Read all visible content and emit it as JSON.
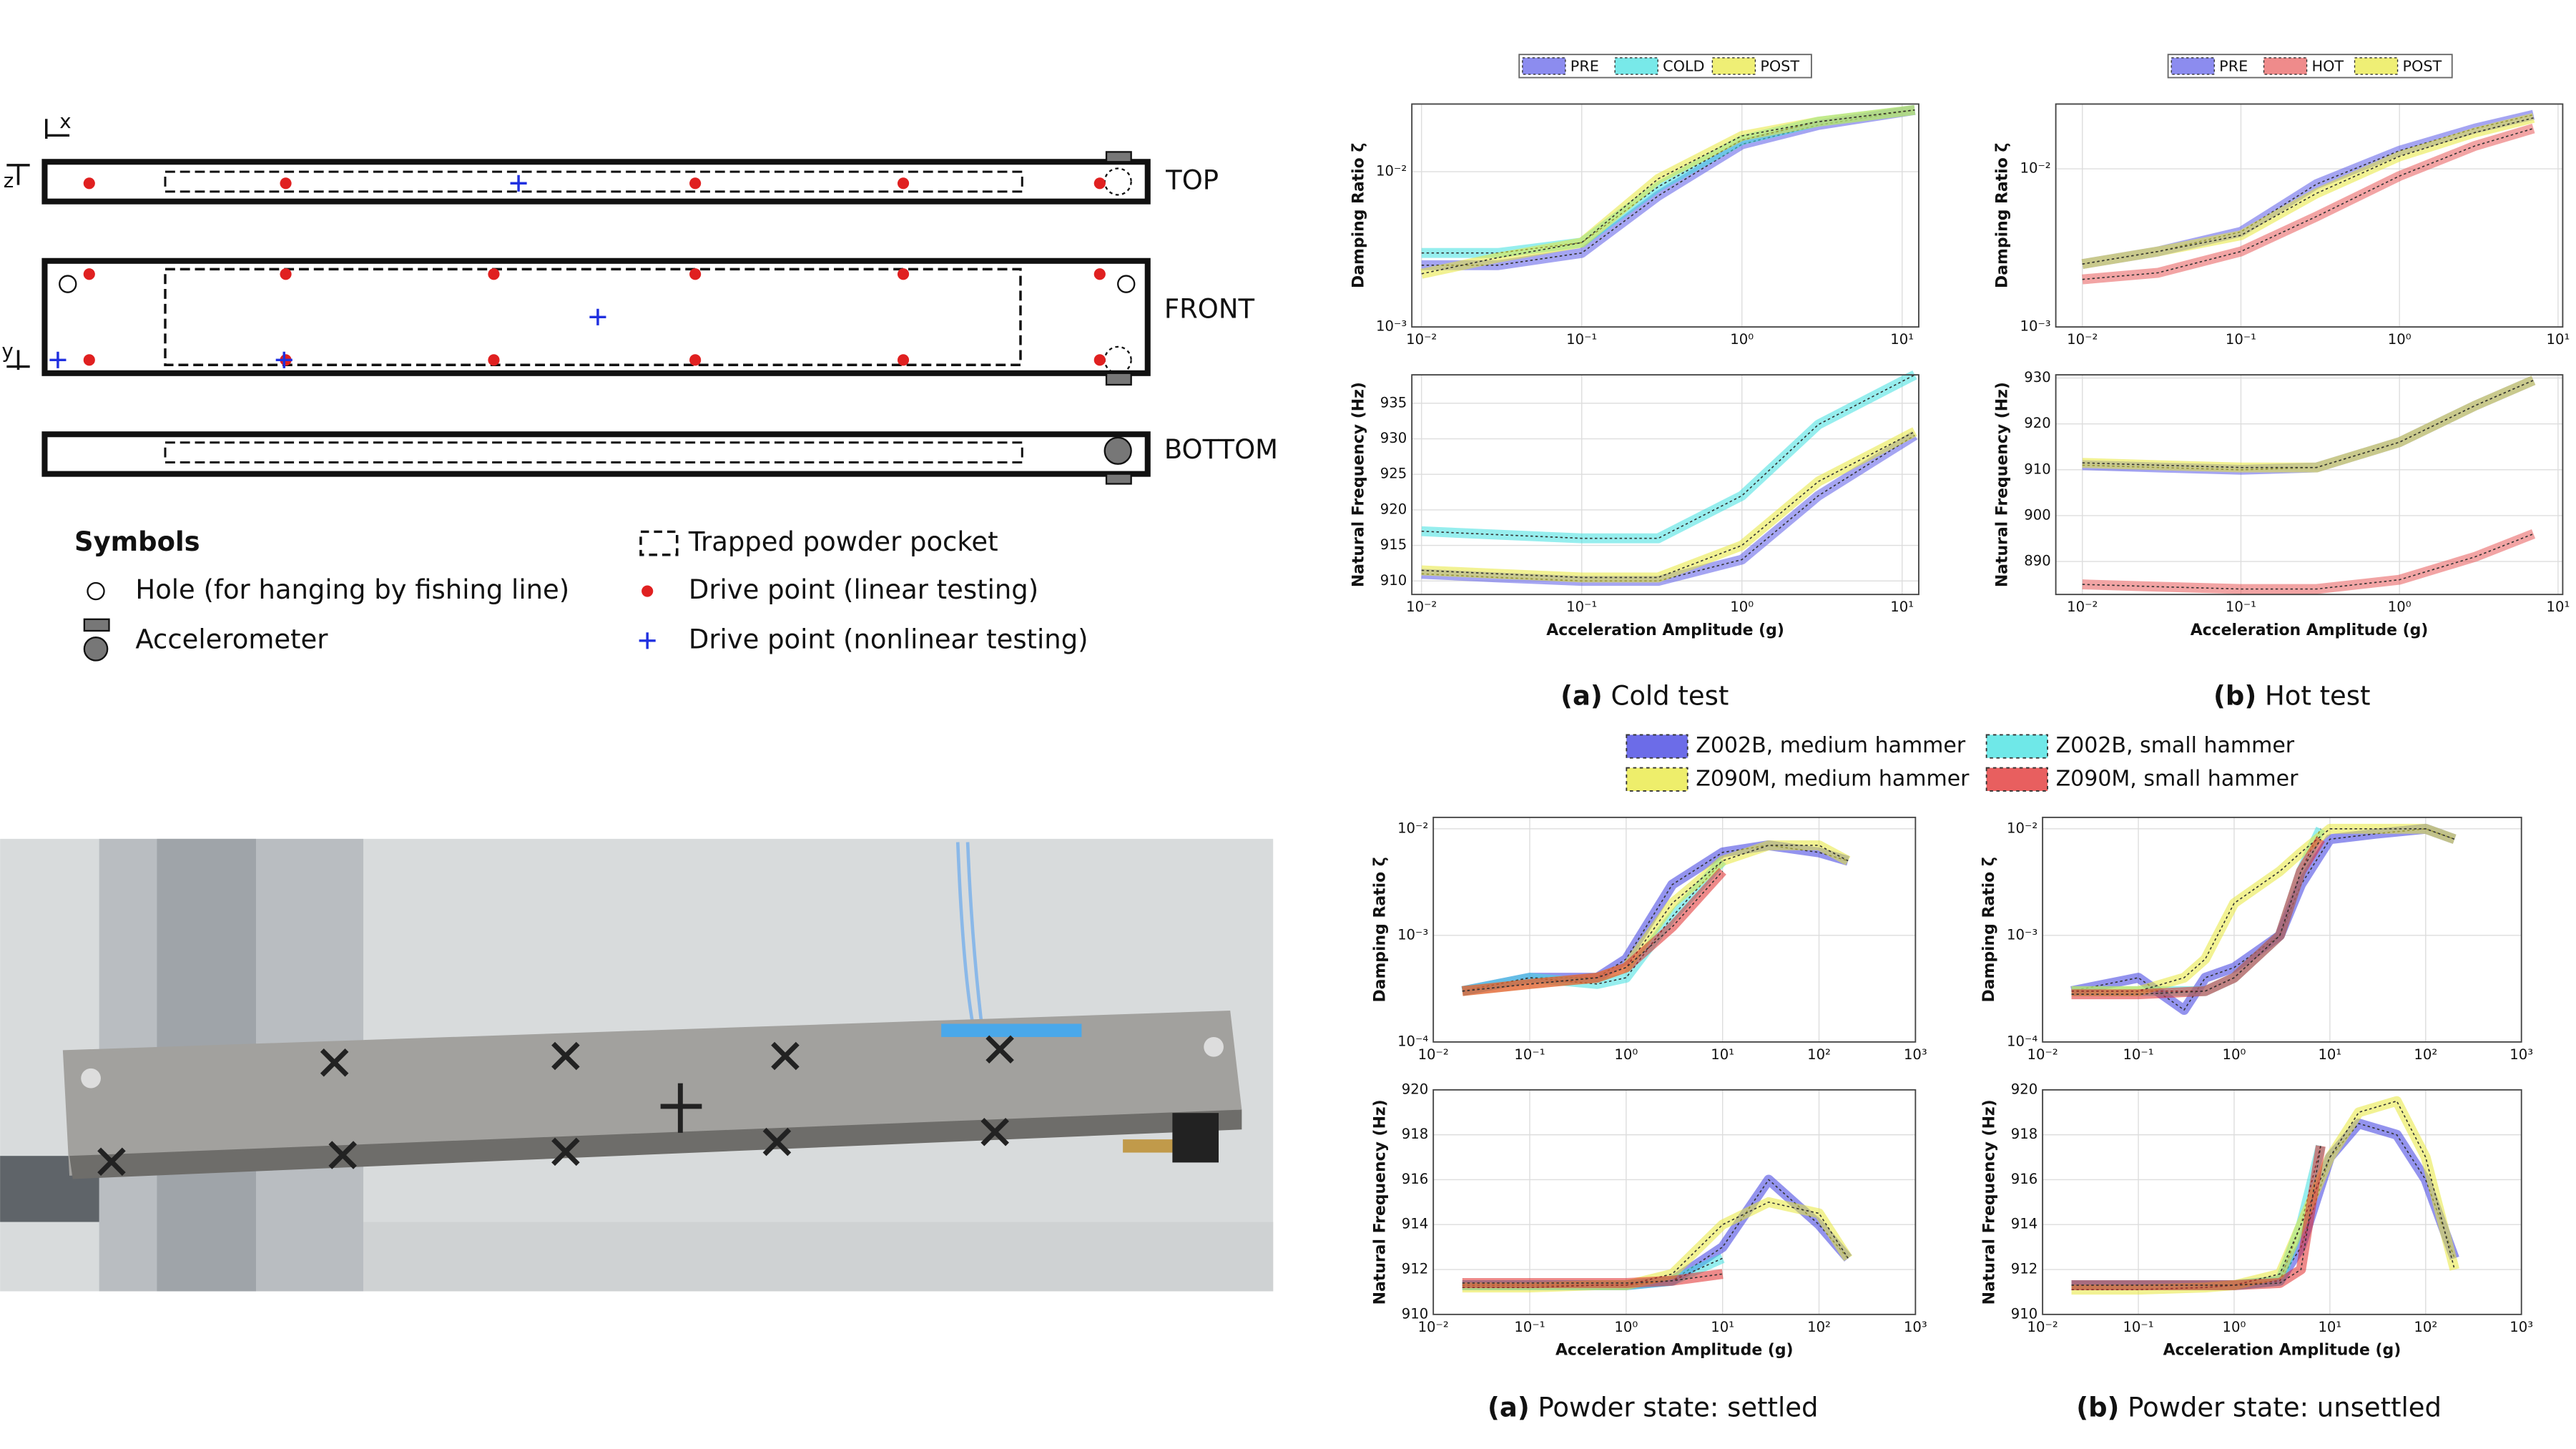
{
  "diagram": {
    "axes": [
      "x",
      "z",
      "y"
    ],
    "views": [
      "TOP",
      "FRONT",
      "BOTTOM"
    ],
    "legend_title": "Symbols",
    "legend": [
      "Hole (for hanging by fishing line)",
      "Accelerometer",
      "Trapped powder pocket",
      "Drive point (linear testing)",
      "Drive point (nonlinear testing)"
    ]
  },
  "captions": [
    {
      "label": "(a)",
      "text": "Cold test"
    },
    {
      "label": "(b)",
      "text": "Hot test"
    },
    {
      "label": "(a)",
      "text": "Powder state: settled"
    },
    {
      "label": "(b)",
      "text": "Powder state: unsettled"
    }
  ],
  "charts": [
    {
      "type": "line",
      "ylabel": "Damping Ratio ζ",
      "xscale": "log",
      "yscale": "log",
      "grid": true,
      "xlim": [
        0.0087,
        12.7
      ],
      "ylim": [
        0.001,
        0.0273
      ],
      "xticks": [
        {
          "value": 0.01,
          "label": "10⁻²"
        },
        {
          "value": 0.1,
          "label": "10⁻¹"
        },
        {
          "value": 1,
          "label": "10⁰"
        },
        {
          "value": 10,
          "label": "10¹"
        }
      ],
      "yticks": [
        {
          "value": 0.001,
          "label": "10⁻³"
        },
        {
          "value": 0.01,
          "label": "10⁻²"
        }
      ],
      "series": [
        {
          "name": "PRE",
          "color": "#5b5be8",
          "x": [
            0.01,
            0.03,
            0.1,
            0.3,
            1,
            3,
            12
          ],
          "values": [
            0.0025,
            0.0025,
            0.003,
            0.007,
            0.015,
            0.02,
            0.025
          ]
        },
        {
          "name": "COLD",
          "color": "#3fe0e0",
          "x": [
            0.01,
            0.03,
            0.1,
            0.3,
            1,
            3,
            12
          ],
          "values": [
            0.003,
            0.003,
            0.0035,
            0.008,
            0.016,
            0.021,
            0.025
          ]
        },
        {
          "name": "POST",
          "color": "#e8e83a",
          "x": [
            0.01,
            0.03,
            0.1,
            0.3,
            1,
            3,
            12
          ],
          "values": [
            0.0022,
            0.0028,
            0.0035,
            0.009,
            0.017,
            0.021,
            0.025
          ]
        }
      ]
    },
    {
      "type": "line",
      "ylabel": "Natural Frequency (Hz)",
      "xlabel": "Acceleration Amplitude (g)",
      "xscale": "log",
      "grid": true,
      "xlim": [
        0.0087,
        12.7
      ],
      "ylim": [
        908.1,
        939
      ],
      "xticks": [
        {
          "value": 0.01,
          "label": "10⁻²"
        },
        {
          "value": 0.1,
          "label": "10⁻¹"
        },
        {
          "value": 1,
          "label": "10⁰"
        },
        {
          "value": 10,
          "label": "10¹"
        }
      ],
      "yticks": [
        910,
        915,
        920,
        925,
        930,
        935
      ],
      "series": [
        {
          "color": "#5b5be8",
          "x": [
            0.01,
            0.03,
            0.1,
            0.3,
            1,
            3,
            12
          ],
          "values": [
            911,
            910.5,
            910,
            910,
            913,
            922,
            930.5
          ]
        },
        {
          "color": "#3fe0e0",
          "x": [
            0.01,
            0.03,
            0.1,
            0.3,
            1,
            3,
            12
          ],
          "values": [
            917,
            916.5,
            916,
            916,
            922,
            932,
            939
          ]
        },
        {
          "color": "#e8e83a",
          "x": [
            0.01,
            0.03,
            0.1,
            0.3,
            1,
            3,
            12
          ],
          "values": [
            911.5,
            911,
            910.5,
            910.5,
            915,
            924,
            931
          ]
        }
      ]
    },
    {
      "type": "line",
      "ylabel": "Damping Ratio ζ",
      "xscale": "log",
      "yscale": "log",
      "grid": true,
      "xlim": [
        0.0068,
        10.7
      ],
      "ylim": [
        0.001,
        0.0257
      ],
      "xticks": [
        {
          "value": 0.01,
          "label": "10⁻²"
        },
        {
          "value": 0.1,
          "label": "10⁻¹"
        },
        {
          "value": 1,
          "label": "10⁰"
        },
        {
          "value": 10,
          "label": "10¹"
        }
      ],
      "yticks": [
        {
          "value": 0.001,
          "label": "10⁻³"
        },
        {
          "value": 0.01,
          "label": "10⁻²"
        }
      ],
      "series": [
        {
          "name": "PRE",
          "color": "#5b5be8",
          "x": [
            0.01,
            0.03,
            0.1,
            0.3,
            1,
            3,
            7
          ],
          "values": [
            0.0025,
            0.003,
            0.004,
            0.008,
            0.013,
            0.018,
            0.022
          ]
        },
        {
          "name": "HOT",
          "color": "#e85a5a",
          "x": [
            0.01,
            0.03,
            0.1,
            0.3,
            1,
            3,
            7
          ],
          "values": [
            0.002,
            0.0022,
            0.003,
            0.005,
            0.009,
            0.014,
            0.018
          ]
        },
        {
          "name": "POST",
          "color": "#e8e83a",
          "x": [
            0.01,
            0.03,
            0.1,
            0.3,
            1,
            3,
            7
          ],
          "values": [
            0.0025,
            0.003,
            0.0038,
            0.007,
            0.012,
            0.017,
            0.021
          ]
        }
      ]
    },
    {
      "type": "line",
      "ylabel": "Natural Frequency (Hz)",
      "xlabel": "Acceleration Amplitude (g)",
      "xscale": "log",
      "grid": true,
      "xlim": [
        0.0068,
        10.7
      ],
      "ylim": [
        882.8,
        930.7
      ],
      "xticks": [
        {
          "value": 0.01,
          "label": "10⁻²"
        },
        {
          "value": 0.1,
          "label": "10⁻¹"
        },
        {
          "value": 1,
          "label": "10⁰"
        },
        {
          "value": 10,
          "label": "10¹"
        }
      ],
      "yticks": [
        890,
        900,
        910,
        920,
        930
      ],
      "series": [
        {
          "color": "#5b5be8",
          "x": [
            0.01,
            0.03,
            0.1,
            0.3,
            1,
            3,
            7
          ],
          "values": [
            911,
            910.5,
            910,
            910.5,
            916,
            924,
            929.5
          ]
        },
        {
          "color": "#e85a5a",
          "x": [
            0.01,
            0.03,
            0.1,
            0.3,
            1,
            3,
            7
          ],
          "values": [
            885,
            884.5,
            884,
            884,
            886,
            891,
            896
          ]
        },
        {
          "color": "#e8e83a",
          "x": [
            0.01,
            0.03,
            0.1,
            0.3,
            1,
            3,
            7
          ],
          "values": [
            911.5,
            911,
            910.5,
            910.5,
            916,
            924,
            929.5
          ]
        }
      ]
    },
    {
      "type": "line",
      "ylabel": "Damping Ratio ζ",
      "xscale": "log",
      "yscale": "log",
      "grid": true,
      "xlim": [
        0.01,
        1000
      ],
      "ylim": [
        0.0001,
        0.0128
      ],
      "xticks": [
        {
          "value": 0.01,
          "label": "10⁻²"
        },
        {
          "value": 0.1,
          "label": "10⁻¹"
        },
        {
          "value": 1,
          "label": "10⁰"
        },
        {
          "value": 10,
          "label": "10¹"
        },
        {
          "value": 100,
          "label": "10²"
        },
        {
          "value": 1000,
          "label": "10³"
        }
      ],
      "yticks": [
        {
          "value": 0.0001,
          "label": "10⁻⁴"
        },
        {
          "value": 0.001,
          "label": "10⁻³"
        },
        {
          "value": 0.01,
          "label": "10⁻²"
        }
      ],
      "series": [
        {
          "name": "Z002B, medium hammer",
          "color": "#3b3be0",
          "x": [
            0.02,
            0.1,
            0.5,
            1,
            3,
            10,
            30,
            100,
            200
          ],
          "values": [
            0.0003,
            0.0004,
            0.0004,
            0.0006,
            0.003,
            0.006,
            0.007,
            0.006,
            0.005
          ]
        },
        {
          "name": "Z002B, small hammer",
          "color": "#3fe0e0",
          "x": [
            0.02,
            0.1,
            0.5,
            1,
            3,
            10
          ],
          "values": [
            0.0003,
            0.0004,
            0.00035,
            0.0004,
            0.0015,
            0.005
          ]
        },
        {
          "name": "Z090M, medium hammer",
          "color": "#e8e83a",
          "x": [
            0.02,
            0.1,
            0.5,
            1,
            3,
            10,
            30,
            100,
            200
          ],
          "values": [
            0.0003,
            0.00035,
            0.0004,
            0.0005,
            0.002,
            0.005,
            0.007,
            0.007,
            0.005
          ]
        },
        {
          "name": "Z090M, small hammer",
          "color": "#e02a2a",
          "x": [
            0.02,
            0.1,
            0.5,
            1,
            3,
            10
          ],
          "values": [
            0.0003,
            0.00035,
            0.0004,
            0.0005,
            0.0012,
            0.004
          ]
        }
      ]
    },
    {
      "type": "line",
      "ylabel": "Natural Frequency (Hz)",
      "xlabel": "Acceleration Amplitude (g)",
      "xscale": "log",
      "grid": true,
      "xlim": [
        0.01,
        1000
      ],
      "ylim": [
        910,
        920
      ],
      "xticks": [
        {
          "value": 0.01,
          "label": "10⁻²"
        },
        {
          "value": 0.1,
          "label": "10⁻¹"
        },
        {
          "value": 1,
          "label": "10⁰"
        },
        {
          "value": 10,
          "label": "10¹"
        },
        {
          "value": 100,
          "label": "10²"
        },
        {
          "value": 1000,
          "label": "10³"
        }
      ],
      "yticks": [
        910,
        912,
        914,
        916,
        918,
        920
      ],
      "series": [
        {
          "color": "#3b3be0",
          "x": [
            0.02,
            0.1,
            0.5,
            1,
            3,
            10,
            30,
            100,
            200
          ],
          "values": [
            911.3,
            911.3,
            911.3,
            911.3,
            911.5,
            913,
            916,
            914,
            912.5
          ]
        },
        {
          "color": "#3fe0e0",
          "x": [
            0.02,
            0.1,
            0.5,
            1,
            3,
            10
          ],
          "values": [
            911.3,
            911.3,
            911.3,
            911.3,
            911.5,
            912.5
          ]
        },
        {
          "color": "#e8e83a",
          "x": [
            0.02,
            0.1,
            0.5,
            1,
            3,
            10,
            30,
            100,
            200
          ],
          "values": [
            911.2,
            911.2,
            911.3,
            911.3,
            911.8,
            914,
            915,
            914.5,
            912.5
          ]
        },
        {
          "color": "#e02a2a",
          "x": [
            0.02,
            0.1,
            0.5,
            1,
            3,
            10
          ],
          "values": [
            911.4,
            911.4,
            911.4,
            911.4,
            911.5,
            911.8
          ]
        }
      ]
    },
    {
      "type": "line",
      "ylabel": "Damping Ratio ζ",
      "xscale": "log",
      "yscale": "log",
      "grid": true,
      "xlim": [
        0.01,
        1000
      ],
      "ylim": [
        0.0001,
        0.0128
      ],
      "xticks": [
        {
          "value": 0.01,
          "label": "10⁻²"
        },
        {
          "value": 0.1,
          "label": "10⁻¹"
        },
        {
          "value": 1,
          "label": "10⁰"
        },
        {
          "value": 10,
          "label": "10¹"
        },
        {
          "value": 100,
          "label": "10²"
        },
        {
          "value": 1000,
          "label": "10³"
        }
      ],
      "yticks": [
        {
          "value": 0.0001,
          "label": "10⁻⁴"
        },
        {
          "value": 0.001,
          "label": "10⁻³"
        },
        {
          "value": 0.01,
          "label": "10⁻²"
        }
      ],
      "series": [
        {
          "color": "#3b3be0",
          "x": [
            0.02,
            0.1,
            0.3,
            0.5,
            1,
            3,
            5,
            10,
            30,
            100,
            200
          ],
          "values": [
            0.0003,
            0.0004,
            0.0002,
            0.0004,
            0.0005,
            0.001,
            0.003,
            0.008,
            0.009,
            0.01,
            0.008
          ]
        },
        {
          "color": "#3fe0e0",
          "x": [
            0.02,
            0.1,
            0.5,
            1,
            3,
            5,
            8
          ],
          "values": [
            0.0003,
            0.0003,
            0.0003,
            0.0004,
            0.001,
            0.004,
            0.01
          ]
        },
        {
          "color": "#e8e83a",
          "x": [
            0.02,
            0.1,
            0.3,
            0.5,
            1,
            3,
            5,
            10,
            30,
            100,
            200
          ],
          "values": [
            0.0003,
            0.0003,
            0.0004,
            0.0006,
            0.002,
            0.004,
            0.006,
            0.01,
            0.01,
            0.01,
            0.008
          ]
        },
        {
          "color": "#e02a2a",
          "x": [
            0.02,
            0.1,
            0.5,
            1,
            3,
            5,
            8
          ],
          "values": [
            0.00028,
            0.00028,
            0.0003,
            0.0004,
            0.001,
            0.004,
            0.008
          ]
        }
      ]
    },
    {
      "type": "line",
      "ylabel": "Natural Frequency (Hz)",
      "xlabel": "Acceleration Amplitude (g)",
      "xscale": "log",
      "grid": true,
      "xlim": [
        0.01,
        1000
      ],
      "ylim": [
        910,
        920
      ],
      "xticks": [
        {
          "value": 0.01,
          "label": "10⁻²"
        },
        {
          "value": 0.1,
          "label": "10⁻¹"
        },
        {
          "value": 1,
          "label": "10⁰"
        },
        {
          "value": 10,
          "label": "10¹"
        },
        {
          "value": 100,
          "label": "10²"
        },
        {
          "value": 1000,
          "label": "10³"
        }
      ],
      "yticks": [
        910,
        912,
        914,
        916,
        918,
        920
      ],
      "series": [
        {
          "color": "#3b3be0",
          "x": [
            0.02,
            0.1,
            0.5,
            1,
            3,
            5,
            10,
            20,
            50,
            100,
            200
          ],
          "values": [
            911.3,
            911.3,
            911.3,
            911.3,
            911.5,
            913,
            917,
            918.5,
            918,
            916,
            912.5
          ]
        },
        {
          "color": "#3fe0e0",
          "x": [
            0.02,
            0.1,
            0.5,
            1,
            3,
            5,
            8
          ],
          "values": [
            911.3,
            911.3,
            911.3,
            911.3,
            911.5,
            914,
            917.5
          ]
        },
        {
          "color": "#e8e83a",
          "x": [
            0.02,
            0.1,
            0.5,
            1,
            3,
            5,
            10,
            20,
            50,
            100,
            200
          ],
          "values": [
            911.1,
            911.1,
            911.2,
            911.3,
            911.8,
            914,
            917,
            919,
            919.5,
            917,
            912
          ]
        },
        {
          "color": "#e02a2a",
          "x": [
            0.02,
            0.1,
            0.5,
            1,
            3,
            5,
            8
          ],
          "values": [
            911.3,
            911.3,
            911.3,
            911.3,
            911.4,
            912,
            917.5
          ]
        }
      ]
    }
  ]
}
